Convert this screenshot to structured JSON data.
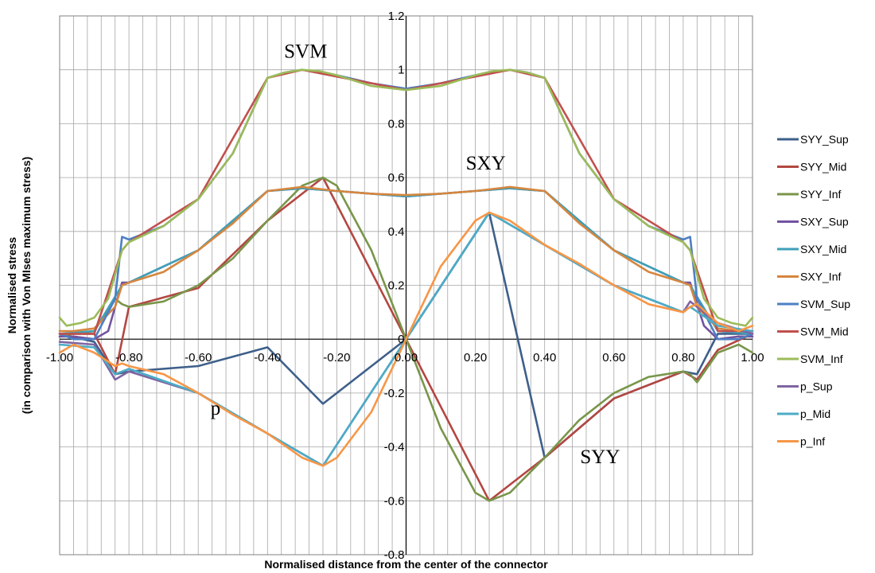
{
  "chart_data": {
    "type": "line",
    "xlabel": "Normalised distance from the center of the connector",
    "ylabel_lines": [
      "Normalised stress",
      "(in comparison with Von MIses maximum stress)"
    ],
    "xlim": [
      -1,
      1
    ],
    "ylim": [
      -0.8,
      1.2
    ],
    "x_ticks": [
      -1,
      -0.8,
      -0.6,
      -0.4,
      -0.2,
      0,
      0.2,
      0.4,
      0.6,
      0.8,
      1
    ],
    "x_tick_labels": [
      "-1.00",
      "-0.80",
      "-0.60",
      "-0.40",
      "-0.20",
      "0.00",
      "0.20",
      "0.40",
      "0.60",
      "0.80",
      "1.00"
    ],
    "y_ticks": [
      -0.8,
      -0.6,
      -0.4,
      -0.2,
      0,
      0.2,
      0.4,
      0.6,
      0.8,
      1,
      1.2
    ],
    "y_tick_labels": [
      "-0.8",
      "-0.6",
      "-0.4",
      "-0.2",
      "0",
      "0.2",
      "0.4",
      "0.6",
      "0.8",
      "1",
      "1.2"
    ],
    "grid": true,
    "legend_position": "right",
    "annotations": [
      {
        "text": "SVM",
        "x": -0.29,
        "y": 1.045
      },
      {
        "text": "SXY",
        "x": 0.23,
        "y": 0.63
      },
      {
        "text": "p",
        "x": -0.55,
        "y": -0.28
      },
      {
        "text": "SYY",
        "x": 0.56,
        "y": -0.46
      }
    ],
    "series": [
      {
        "name": "SYY_Sup",
        "color": "#3e5f8a",
        "x": [
          -1,
          -0.9,
          -0.84,
          -0.8,
          -0.6,
          -0.4,
          -0.24,
          0,
          0.24,
          0.4,
          0.6,
          0.8,
          0.84,
          0.9,
          1
        ],
        "y": [
          0.02,
          -0.01,
          -0.13,
          -0.12,
          -0.1,
          -0.03,
          -0.24,
          0,
          0.47,
          -0.44,
          -0.22,
          -0.12,
          -0.13,
          0.02,
          0.02
        ]
      },
      {
        "name": "SYY_Mid",
        "color": "#b34741",
        "x": [
          -1,
          -0.9,
          -0.84,
          -0.8,
          -0.6,
          -0.4,
          -0.24,
          0,
          0.24,
          0.4,
          0.6,
          0.8,
          0.84,
          0.9,
          1
        ],
        "y": [
          0.02,
          0.02,
          -0.13,
          0.12,
          0.19,
          0.44,
          0.6,
          0,
          -0.6,
          -0.44,
          -0.22,
          -0.12,
          -0.15,
          -0.04,
          0.02
        ]
      },
      {
        "name": "SYY_Inf",
        "color": "#78964a",
        "x": [
          -1,
          -0.96,
          -0.9,
          -0.84,
          -0.82,
          -0.8,
          -0.7,
          -0.6,
          -0.5,
          -0.4,
          -0.3,
          -0.24,
          -0.2,
          -0.1,
          0,
          0.1,
          0.2,
          0.24,
          0.3,
          0.4,
          0.5,
          0.6,
          0.7,
          0.8,
          0.82,
          0.84,
          0.9,
          0.96,
          1
        ],
        "y": [
          0.01,
          0.02,
          0.03,
          0.15,
          0.13,
          0.12,
          0.14,
          0.2,
          0.3,
          0.44,
          0.57,
          0.6,
          0.57,
          0.33,
          0,
          -0.33,
          -0.57,
          -0.6,
          -0.57,
          -0.44,
          -0.3,
          -0.2,
          -0.14,
          -0.12,
          -0.13,
          -0.16,
          -0.05,
          -0.02,
          -0.05
        ]
      },
      {
        "name": "SXY_Sup",
        "color": "#7354a0",
        "x": [
          -1,
          -0.96,
          -0.9,
          -0.86,
          -0.82,
          -0.8,
          -0.6,
          -0.4,
          -0.3,
          -0.2,
          0,
          0.2,
          0.3,
          0.4,
          0.6,
          0.8,
          0.82,
          0.86,
          0.9,
          0.96,
          1
        ],
        "y": [
          0.01,
          0.01,
          0.0,
          0.03,
          0.21,
          0.21,
          0.33,
          0.55,
          0.56,
          0.55,
          0.53,
          0.55,
          0.56,
          0.55,
          0.33,
          0.21,
          0.21,
          0.05,
          0.0,
          0.01,
          0.01
        ]
      },
      {
        "name": "SXY_Mid",
        "color": "#3ea0b8",
        "x": [
          -1,
          -0.9,
          -0.82,
          -0.8,
          -0.6,
          -0.4,
          -0.3,
          -0.2,
          0,
          0.2,
          0.3,
          0.4,
          0.6,
          0.8,
          0.82,
          0.9,
          1
        ],
        "y": [
          0.02,
          0.03,
          0.2,
          0.21,
          0.33,
          0.55,
          0.56,
          0.55,
          0.53,
          0.55,
          0.56,
          0.55,
          0.33,
          0.21,
          0.2,
          0.03,
          0.02
        ]
      },
      {
        "name": "SXY_Inf",
        "color": "#d6863e",
        "x": [
          -1,
          -0.96,
          -0.9,
          -0.84,
          -0.82,
          -0.8,
          -0.7,
          -0.6,
          -0.5,
          -0.4,
          -0.3,
          -0.2,
          -0.1,
          0,
          0.1,
          0.2,
          0.3,
          0.4,
          0.5,
          0.6,
          0.7,
          0.8,
          0.82,
          0.84,
          0.9,
          0.96,
          1
        ],
        "y": [
          0.03,
          0.03,
          0.04,
          0.12,
          0.2,
          0.21,
          0.25,
          0.33,
          0.43,
          0.55,
          0.565,
          0.55,
          0.54,
          0.535,
          0.54,
          0.55,
          0.565,
          0.55,
          0.43,
          0.33,
          0.25,
          0.21,
          0.2,
          0.12,
          0.04,
          0.03,
          0.03
        ]
      },
      {
        "name": "SVM_Sup",
        "color": "#4d7fc4",
        "x": [
          -1,
          -0.96,
          -0.9,
          -0.84,
          -0.82,
          -0.8,
          -0.7,
          -0.6,
          -0.5,
          -0.4,
          -0.35,
          -0.3,
          -0.2,
          -0.1,
          0,
          0.1,
          0.2,
          0.3,
          0.35,
          0.4,
          0.5,
          0.6,
          0.7,
          0.8,
          0.82,
          0.84,
          0.9,
          0.96,
          1
        ],
        "y": [
          0.02,
          0.0,
          0.0,
          0.15,
          0.38,
          0.37,
          0.42,
          0.52,
          0.69,
          0.97,
          0.99,
          1.0,
          0.98,
          0.95,
          0.93,
          0.95,
          0.98,
          1.0,
          0.99,
          0.97,
          0.69,
          0.52,
          0.42,
          0.37,
          0.38,
          0.15,
          0.0,
          0.0,
          0.02
        ]
      },
      {
        "name": "SVM_Mid",
        "color": "#c0504d",
        "x": [
          -1,
          -0.9,
          -0.82,
          -0.8,
          -0.6,
          -0.4,
          -0.3,
          -0.2,
          0,
          0.2,
          0.3,
          0.4,
          0.6,
          0.8,
          0.82,
          0.9,
          1
        ],
        "y": [
          0.02,
          0.02,
          0.33,
          0.36,
          0.52,
          0.97,
          1.0,
          0.975,
          0.925,
          0.975,
          1.0,
          0.97,
          0.52,
          0.36,
          0.33,
          0.03,
          0.03
        ]
      },
      {
        "name": "SVM_Inf",
        "color": "#9bbb59",
        "x": [
          -1,
          -0.98,
          -0.94,
          -0.9,
          -0.86,
          -0.82,
          -0.8,
          -0.7,
          -0.6,
          -0.5,
          -0.4,
          -0.35,
          -0.3,
          -0.25,
          -0.2,
          -0.1,
          0,
          0.1,
          0.2,
          0.25,
          0.3,
          0.35,
          0.4,
          0.5,
          0.6,
          0.7,
          0.8,
          0.82,
          0.86,
          0.9,
          0.94,
          0.98,
          1
        ],
        "y": [
          0.08,
          0.05,
          0.06,
          0.08,
          0.15,
          0.33,
          0.36,
          0.42,
          0.52,
          0.69,
          0.97,
          0.99,
          1.0,
          0.995,
          0.98,
          0.94,
          0.925,
          0.94,
          0.98,
          0.995,
          1.0,
          0.99,
          0.97,
          0.69,
          0.52,
          0.42,
          0.36,
          0.33,
          0.15,
          0.08,
          0.06,
          0.05,
          0.08
        ]
      },
      {
        "name": "p_Sup",
        "color": "#8064a2",
        "x": [
          -1,
          -0.9,
          -0.84,
          -0.8,
          -0.6,
          -0.4,
          -0.24,
          0,
          0.24,
          0.4,
          0.6,
          0.8,
          0.82,
          0.9,
          1
        ],
        "y": [
          -0.01,
          -0.02,
          -0.15,
          -0.12,
          -0.2,
          -0.35,
          -0.47,
          0,
          0.47,
          0.35,
          0.2,
          0.1,
          0.14,
          0.06,
          0.02
        ]
      },
      {
        "name": "p_Mid",
        "color": "#4bacc6",
        "x": [
          -1,
          -0.9,
          -0.84,
          -0.8,
          -0.6,
          -0.4,
          -0.24,
          0,
          0.24,
          0.4,
          0.6,
          0.8,
          0.82,
          0.9,
          1
        ],
        "y": [
          -0.02,
          -0.03,
          -0.13,
          -0.11,
          -0.2,
          -0.35,
          -0.47,
          0,
          0.47,
          0.35,
          0.2,
          0.1,
          0.12,
          0.05,
          0.03
        ]
      },
      {
        "name": "p_Inf",
        "color": "#f79646",
        "x": [
          -1,
          -0.96,
          -0.9,
          -0.84,
          -0.82,
          -0.8,
          -0.7,
          -0.6,
          -0.5,
          -0.4,
          -0.3,
          -0.24,
          -0.2,
          -0.1,
          0,
          0.1,
          0.2,
          0.24,
          0.3,
          0.4,
          0.5,
          0.6,
          0.7,
          0.8,
          0.82,
          0.84,
          0.9,
          0.96,
          1
        ],
        "y": [
          -0.05,
          -0.02,
          -0.05,
          -0.1,
          -0.09,
          -0.1,
          -0.13,
          -0.2,
          -0.28,
          -0.35,
          -0.44,
          -0.47,
          -0.44,
          -0.27,
          0,
          0.27,
          0.44,
          0.47,
          0.44,
          0.35,
          0.28,
          0.2,
          0.13,
          0.1,
          0.12,
          0.13,
          0.06,
          0.03,
          0.05
        ]
      }
    ]
  }
}
